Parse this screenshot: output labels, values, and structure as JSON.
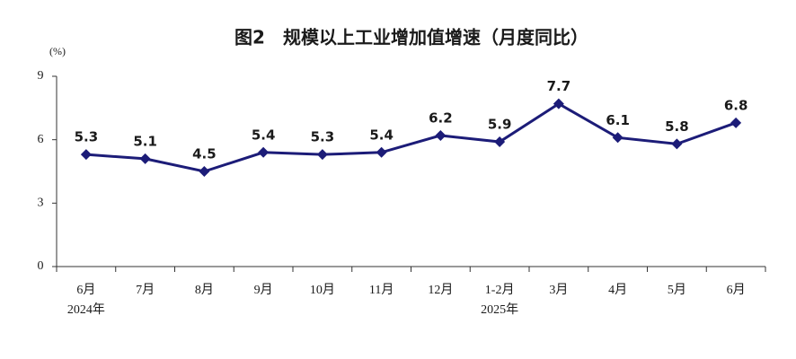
{
  "chart_data": {
    "type": "line",
    "title": "图2　规模以上工业增加值增速（月度同比）",
    "y_unit": "(%)",
    "categories": [
      "6月",
      "7月",
      "8月",
      "9月",
      "10月",
      "11月",
      "12月",
      "1-2月",
      "3月",
      "4月",
      "5月",
      "6月"
    ],
    "category_groups": [
      "2024年",
      null,
      null,
      null,
      null,
      null,
      null,
      "2025年",
      null,
      null,
      null,
      null
    ],
    "values": [
      5.3,
      5.1,
      4.5,
      5.4,
      5.3,
      5.4,
      6.2,
      5.9,
      7.7,
      6.1,
      5.8,
      6.8
    ],
    "color": "#1c1c78",
    "ylim": [
      0,
      9
    ],
    "yticks": [
      0,
      3,
      6,
      9
    ]
  }
}
